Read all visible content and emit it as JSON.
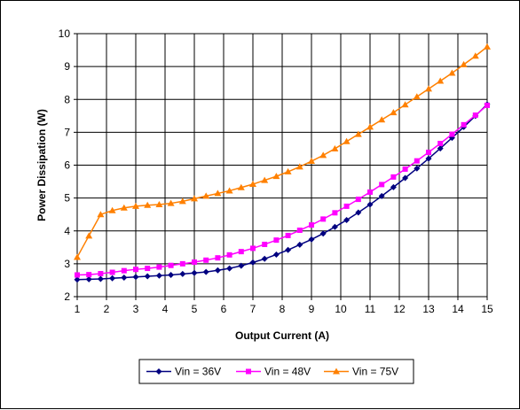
{
  "chart_data": {
    "type": "line",
    "title": "",
    "xlabel": "Output Current (A)",
    "ylabel": "Power Dissipation (W)",
    "xlim": [
      1,
      15
    ],
    "ylim": [
      2,
      10
    ],
    "xticks": [
      1,
      2,
      3,
      4,
      5,
      6,
      7,
      8,
      9,
      10,
      11,
      12,
      13,
      14,
      15
    ],
    "yticks": [
      2,
      3,
      4,
      5,
      6,
      7,
      8,
      9,
      10
    ],
    "grid": true,
    "legend_position": "bottom",
    "series": [
      {
        "name": "Vin = 36V",
        "color": "#000080",
        "marker": "diamond",
        "points": [
          [
            1,
            2.52
          ],
          [
            1.4,
            2.53
          ],
          [
            1.8,
            2.54
          ],
          [
            2.2,
            2.56
          ],
          [
            2.6,
            2.58
          ],
          [
            3,
            2.6
          ],
          [
            3.4,
            2.62
          ],
          [
            3.8,
            2.64
          ],
          [
            4.2,
            2.66
          ],
          [
            4.6,
            2.69
          ],
          [
            5,
            2.72
          ],
          [
            5.4,
            2.75
          ],
          [
            5.8,
            2.8
          ],
          [
            6.2,
            2.86
          ],
          [
            6.6,
            2.94
          ],
          [
            7,
            3.04
          ],
          [
            7.4,
            3.15
          ],
          [
            7.8,
            3.28
          ],
          [
            8.2,
            3.42
          ],
          [
            8.6,
            3.58
          ],
          [
            9,
            3.74
          ],
          [
            9.4,
            3.92
          ],
          [
            9.8,
            4.12
          ],
          [
            10.2,
            4.33
          ],
          [
            10.6,
            4.56
          ],
          [
            11,
            4.8
          ],
          [
            11.4,
            5.06
          ],
          [
            11.8,
            5.33
          ],
          [
            12.2,
            5.61
          ],
          [
            12.6,
            5.9
          ],
          [
            13,
            6.2
          ],
          [
            13.4,
            6.51
          ],
          [
            13.8,
            6.83
          ],
          [
            14.2,
            7.16
          ],
          [
            14.6,
            7.5
          ],
          [
            15,
            7.85
          ]
        ]
      },
      {
        "name": "Vin = 48V",
        "color": "#ff00ff",
        "marker": "square",
        "points": [
          [
            1,
            2.66
          ],
          [
            1.4,
            2.67
          ],
          [
            1.8,
            2.7
          ],
          [
            2.2,
            2.74
          ],
          [
            2.6,
            2.79
          ],
          [
            3,
            2.83
          ],
          [
            3.4,
            2.86
          ],
          [
            3.8,
            2.9
          ],
          [
            4.2,
            2.95
          ],
          [
            4.6,
            3.0
          ],
          [
            5,
            3.05
          ],
          [
            5.4,
            3.11
          ],
          [
            5.8,
            3.18
          ],
          [
            6.2,
            3.27
          ],
          [
            6.6,
            3.37
          ],
          [
            7,
            3.47
          ],
          [
            7.4,
            3.59
          ],
          [
            7.8,
            3.72
          ],
          [
            8.2,
            3.86
          ],
          [
            8.6,
            4.02
          ],
          [
            9,
            4.18
          ],
          [
            9.4,
            4.36
          ],
          [
            9.8,
            4.55
          ],
          [
            10.2,
            4.75
          ],
          [
            10.6,
            4.96
          ],
          [
            11,
            5.18
          ],
          [
            11.4,
            5.41
          ],
          [
            11.8,
            5.64
          ],
          [
            12.2,
            5.88
          ],
          [
            12.6,
            6.13
          ],
          [
            13,
            6.39
          ],
          [
            13.4,
            6.66
          ],
          [
            13.8,
            6.94
          ],
          [
            14.2,
            7.23
          ],
          [
            14.6,
            7.52
          ],
          [
            15,
            7.82
          ]
        ]
      },
      {
        "name": "Vin = 75V",
        "color": "#ff8000",
        "marker": "triangle",
        "points": [
          [
            1,
            3.2
          ],
          [
            1.4,
            3.85
          ],
          [
            1.8,
            4.5
          ],
          [
            2.2,
            4.62
          ],
          [
            2.6,
            4.7
          ],
          [
            3,
            4.75
          ],
          [
            3.4,
            4.78
          ],
          [
            3.8,
            4.8
          ],
          [
            4.2,
            4.84
          ],
          [
            4.6,
            4.9
          ],
          [
            5,
            4.98
          ],
          [
            5.4,
            5.06
          ],
          [
            5.8,
            5.14
          ],
          [
            6.2,
            5.22
          ],
          [
            6.6,
            5.32
          ],
          [
            7,
            5.42
          ],
          [
            7.4,
            5.54
          ],
          [
            7.8,
            5.66
          ],
          [
            8.2,
            5.8
          ],
          [
            8.6,
            5.95
          ],
          [
            9,
            6.12
          ],
          [
            9.4,
            6.3
          ],
          [
            9.8,
            6.5
          ],
          [
            10.2,
            6.72
          ],
          [
            10.6,
            6.94
          ],
          [
            11,
            7.16
          ],
          [
            11.4,
            7.38
          ],
          [
            11.8,
            7.6
          ],
          [
            12.2,
            7.84
          ],
          [
            12.6,
            8.08
          ],
          [
            13,
            8.32
          ],
          [
            13.4,
            8.56
          ],
          [
            13.8,
            8.8
          ],
          [
            14.2,
            9.06
          ],
          [
            14.6,
            9.32
          ],
          [
            15,
            9.6
          ]
        ]
      }
    ]
  }
}
